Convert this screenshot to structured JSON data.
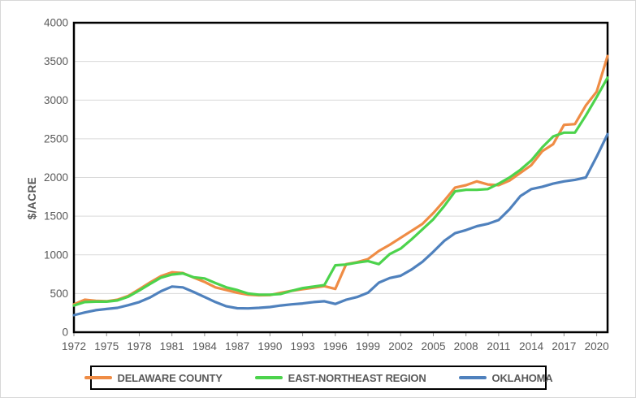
{
  "figure": {
    "background": "#FFFFFF",
    "outer_border_color": "#D7D7D7",
    "plot_border_color": "#000000",
    "gridline_color": "#D9D9D9",
    "tick_color": "#8C8C8C",
    "label_color": "#595959"
  },
  "chart_data": {
    "type": "line",
    "title": "",
    "xlabel": "",
    "ylabel": "$/ACRE",
    "ylim": [
      0,
      4000
    ],
    "ytick_step": 500,
    "y_tick_labels": [
      "0",
      "500",
      "1000",
      "1500",
      "2000",
      "2500",
      "3000",
      "3500",
      "4000"
    ],
    "x_tick_labels": [
      "1972",
      "1975",
      "1978",
      "1981",
      "1984",
      "1987",
      "1990",
      "1993",
      "1996",
      "1999",
      "2002",
      "2005",
      "2008",
      "2011",
      "2014",
      "2017",
      "2020"
    ],
    "grid": "horizontal",
    "legend_position": "bottom-boxed",
    "x": [
      1972,
      1973,
      1974,
      1975,
      1976,
      1977,
      1978,
      1979,
      1980,
      1981,
      1982,
      1983,
      1984,
      1985,
      1986,
      1987,
      1988,
      1989,
      1990,
      1991,
      1992,
      1993,
      1994,
      1995,
      1996,
      1997,
      1998,
      1999,
      2000,
      2001,
      2002,
      2003,
      2004,
      2005,
      2006,
      2007,
      2008,
      2009,
      2010,
      2011,
      2012,
      2013,
      2014,
      2015,
      2016,
      2017,
      2018,
      2019,
      2020,
      2021
    ],
    "series": [
      {
        "name": "DELAWARE COUNTY",
        "color": "#EF8C45",
        "values": [
          360,
          420,
          405,
          400,
          420,
          470,
          555,
          645,
          725,
          775,
          765,
          705,
          650,
          580,
          545,
          510,
          485,
          478,
          480,
          510,
          535,
          555,
          575,
          595,
          560,
          880,
          905,
          945,
          1050,
          1130,
          1220,
          1310,
          1400,
          1540,
          1700,
          1870,
          1900,
          1950,
          1910,
          1900,
          1960,
          2060,
          2160,
          2340,
          2430,
          2680,
          2690,
          2930,
          3110,
          3570
        ]
      },
      {
        "name": "EAST-NORTHEAST REGION",
        "color": "#4CD34C",
        "values": [
          345,
          390,
          395,
          395,
          410,
          460,
          540,
          625,
          705,
          745,
          760,
          710,
          695,
          635,
          580,
          545,
          500,
          485,
          485,
          495,
          535,
          570,
          590,
          610,
          865,
          875,
          900,
          920,
          880,
          1010,
          1080,
          1200,
          1330,
          1460,
          1630,
          1820,
          1840,
          1840,
          1850,
          1920,
          2000,
          2100,
          2220,
          2390,
          2530,
          2580,
          2580,
          2800,
          3040,
          3290
        ]
      },
      {
        "name": "OKLAHOMA",
        "color": "#4F81BD",
        "values": [
          220,
          255,
          285,
          300,
          315,
          350,
          390,
          450,
          530,
          590,
          580,
          520,
          455,
          390,
          335,
          310,
          308,
          315,
          325,
          345,
          360,
          372,
          390,
          400,
          365,
          420,
          455,
          510,
          640,
          700,
          730,
          810,
          910,
          1040,
          1180,
          1280,
          1320,
          1370,
          1400,
          1450,
          1590,
          1760,
          1850,
          1880,
          1920,
          1950,
          1970,
          2000,
          2270,
          2560
        ]
      }
    ]
  }
}
